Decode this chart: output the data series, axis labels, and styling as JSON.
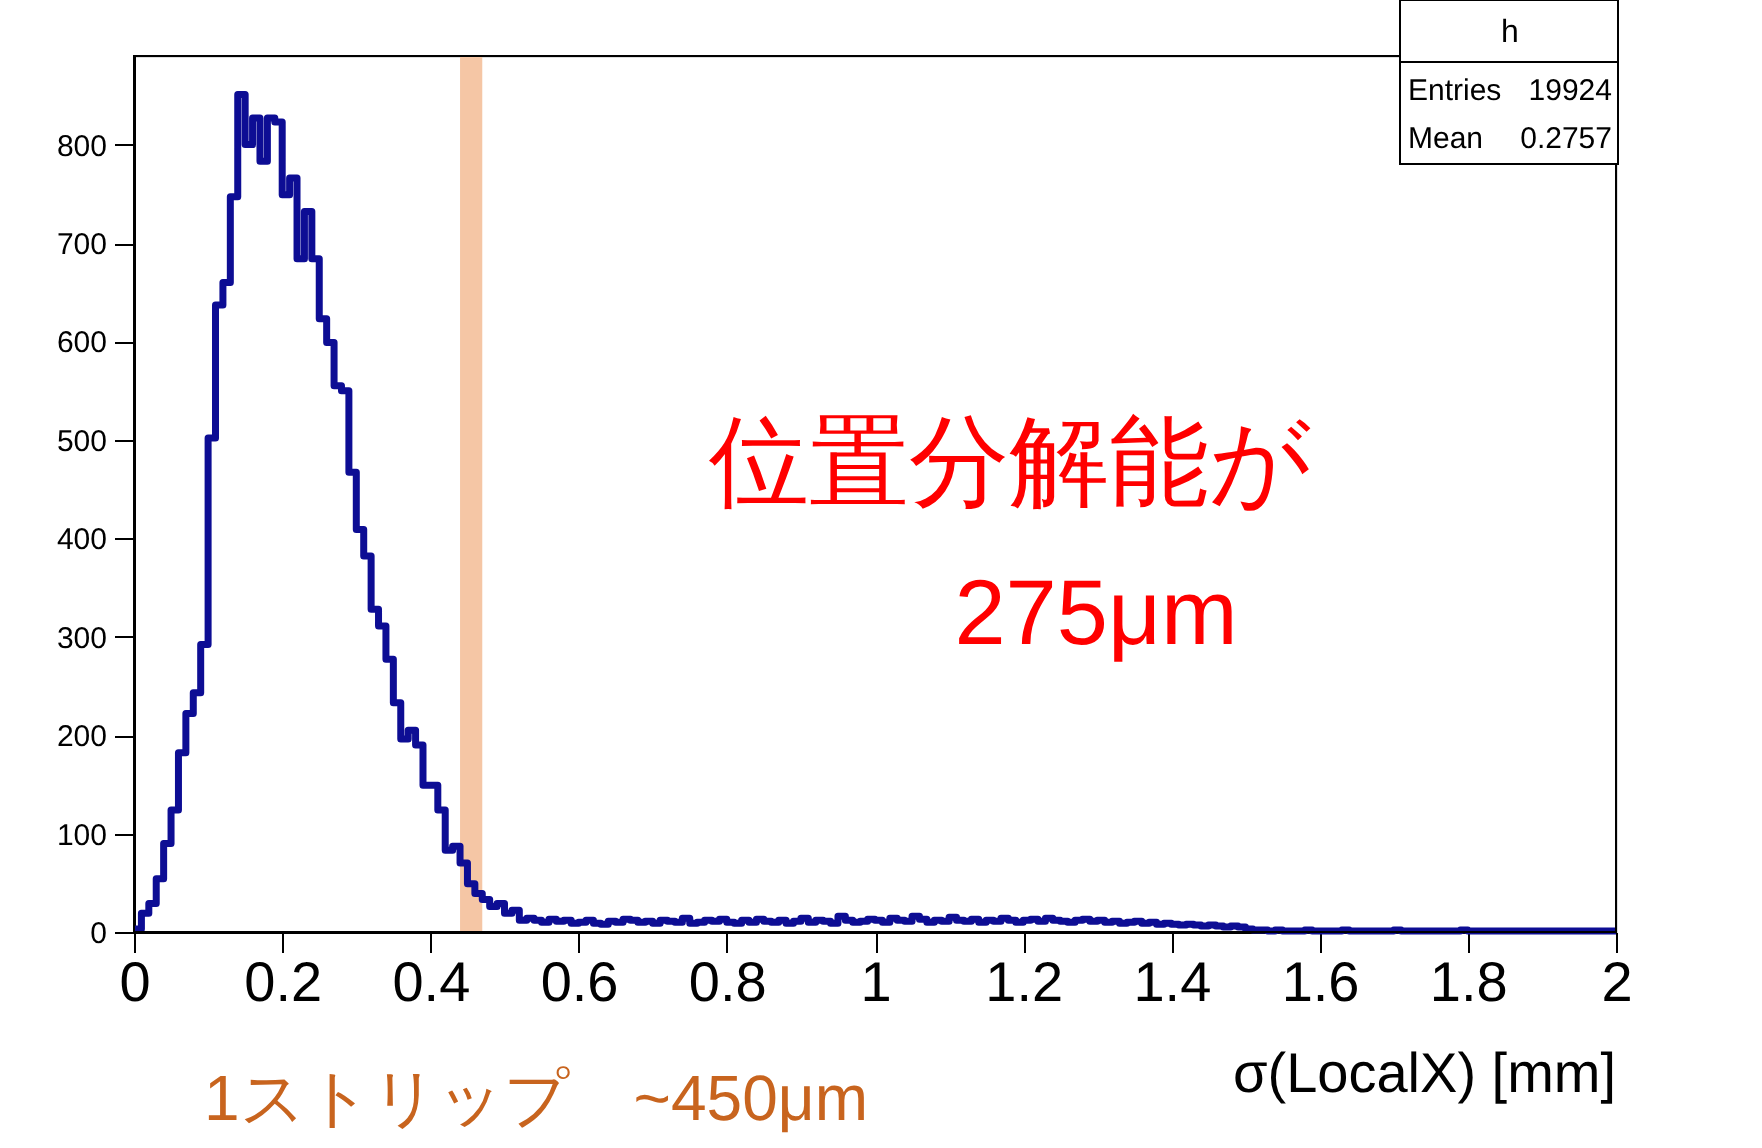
{
  "chart_data": {
    "type": "histogram",
    "xlabel": "σ(LocalX) [mm]",
    "bins": [
      0,
      0.01,
      0.02,
      0.03,
      0.04,
      0.05,
      0.06,
      0.07,
      0.08,
      0.09,
      0.1,
      0.11,
      0.12,
      0.13,
      0.14,
      0.15,
      0.16,
      0.17,
      0.18,
      0.19,
      0.2,
      0.21,
      0.22,
      0.23,
      0.24,
      0.25,
      0.26,
      0.27,
      0.28,
      0.29,
      0.3,
      0.31,
      0.32,
      0.33,
      0.34,
      0.35,
      0.36,
      0.37,
      0.38,
      0.39,
      0.4,
      0.41,
      0.42,
      0.43,
      0.44,
      0.45,
      0.46,
      0.47,
      0.48,
      0.49,
      0.5,
      0.51,
      0.52,
      0.53,
      0.54,
      0.55,
      0.56,
      0.57,
      0.58,
      0.59,
      0.6,
      0.61,
      0.62,
      0.63,
      0.64,
      0.65,
      0.66,
      0.67,
      0.68,
      0.69,
      0.7,
      0.71,
      0.72,
      0.73,
      0.74,
      0.75,
      0.76,
      0.77,
      0.78,
      0.79,
      0.8,
      0.81,
      0.82,
      0.83,
      0.84,
      0.85,
      0.86,
      0.87,
      0.88,
      0.89,
      0.9,
      0.91,
      0.92,
      0.93,
      0.94,
      0.95,
      0.96,
      0.97,
      0.98,
      0.99,
      1,
      1.01,
      1.02,
      1.03,
      1.04,
      1.05,
      1.06,
      1.07,
      1.08,
      1.09,
      1.1,
      1.11,
      1.12,
      1.13,
      1.14,
      1.15,
      1.16,
      1.17,
      1.18,
      1.19,
      1.2,
      1.21,
      1.22,
      1.23,
      1.24,
      1.25,
      1.26,
      1.27,
      1.28,
      1.29,
      1.3,
      1.31,
      1.32,
      1.33,
      1.34,
      1.35,
      1.36,
      1.37,
      1.38,
      1.39,
      1.4,
      1.41,
      1.42,
      1.43,
      1.44,
      1.45,
      1.46,
      1.47,
      1.48,
      1.49,
      1.5,
      1.51,
      1.52,
      1.53,
      1.54,
      1.55,
      1.56,
      1.57,
      1.58,
      1.59,
      1.6,
      1.61,
      1.62,
      1.63,
      1.64,
      1.65,
      1.66,
      1.67,
      1.68,
      1.69,
      1.7,
      1.71,
      1.72,
      1.73,
      1.74,
      1.75,
      1.76,
      1.77,
      1.78,
      1.79,
      1.8,
      1.81,
      1.82,
      1.83,
      1.84,
      1.85,
      1.86,
      1.87,
      1.88,
      1.89,
      1.9,
      1.91,
      1.92,
      1.93,
      1.94,
      1.95,
      1.96,
      1.97,
      1.98,
      1.99,
      2
    ],
    "values": [
      3,
      19,
      29,
      54,
      90,
      124,
      182,
      222,
      243,
      292,
      502,
      637,
      660,
      747,
      851,
      800,
      827,
      783,
      827,
      823,
      749,
      766,
      684,
      732,
      684,
      623,
      599,
      555,
      550,
      467,
      409,
      382,
      328,
      311,
      277,
      233,
      196,
      205,
      190,
      149,
      149,
      124,
      83,
      87,
      70,
      49,
      39,
      33,
      26,
      29,
      19,
      22,
      12,
      14,
      12,
      10,
      13,
      11,
      12,
      9,
      10,
      12,
      9,
      8,
      11,
      10,
      13,
      12,
      10,
      11,
      9,
      12,
      11,
      10,
      14,
      9,
      10,
      12,
      11,
      13,
      10,
      9,
      12,
      10,
      13,
      11,
      10,
      12,
      9,
      11,
      14,
      10,
      12,
      11,
      9,
      16,
      12,
      10,
      11,
      13,
      12,
      10,
      14,
      12,
      11,
      16,
      13,
      10,
      12,
      11,
      15,
      12,
      11,
      13,
      10,
      12,
      11,
      14,
      12,
      10,
      12,
      13,
      11,
      14,
      12,
      11,
      10,
      12,
      13,
      11,
      12,
      10,
      11,
      9,
      10,
      11,
      9,
      10,
      8,
      9,
      8,
      7,
      8,
      7,
      6,
      7,
      6,
      5,
      6,
      5,
      3,
      2,
      2,
      1,
      2,
      1,
      1,
      1,
      2,
      1,
      1,
      1,
      1,
      2,
      1,
      1,
      1,
      1,
      1,
      1,
      2,
      1,
      1,
      1,
      1,
      1,
      1,
      1,
      1,
      2,
      1,
      1,
      1,
      1,
      1,
      1,
      1,
      1,
      1,
      1,
      1,
      1,
      1,
      1,
      1,
      1,
      1,
      1,
      1,
      1
    ],
    "color": "#0d0d94",
    "xlim": [
      0,
      2
    ],
    "ylim": [
      0,
      890
    ],
    "xticks": [
      0,
      0.2,
      0.4,
      0.6,
      0.8,
      1,
      1.2,
      1.4,
      1.6,
      1.8,
      2
    ],
    "yticks": [
      0,
      100,
      200,
      300,
      400,
      500,
      600,
      700,
      800
    ],
    "grid": false,
    "bands": [
      {
        "axis": "x",
        "from": 0.44,
        "to": 0.47,
        "color": "#f5c6a5"
      }
    ],
    "annotations": [
      "位置分解能が",
      "275μm",
      "1ストリップ　~450μm",
      "h",
      "Entries",
      "19924",
      "Mean",
      "0.2757"
    ]
  }
}
